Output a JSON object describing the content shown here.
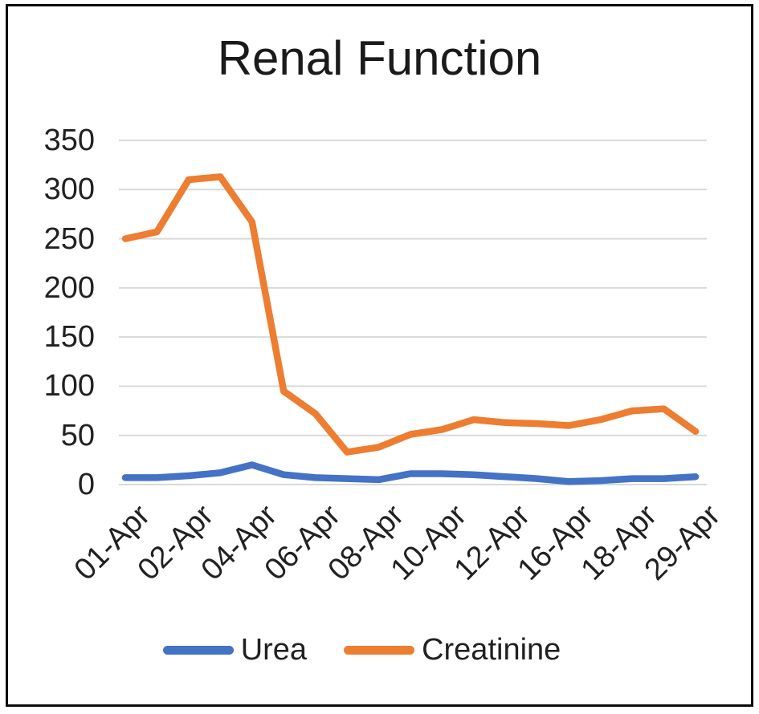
{
  "chart_data": {
    "type": "line",
    "title": "Renal Function",
    "categories": [
      "01-Apr",
      "",
      "02-Apr",
      "",
      "04-Apr",
      "",
      "06-Apr",
      "",
      "08-Apr",
      "",
      "10-Apr",
      "",
      "12-Apr",
      "",
      "16-Apr",
      "",
      "18-Apr",
      "",
      "29-Apr"
    ],
    "visible_x_labels": [
      "01-Apr",
      "02-Apr",
      "04-Apr",
      "06-Apr",
      "08-Apr",
      "10-Apr",
      "12-Apr",
      "16-Apr",
      "18-Apr",
      "29-Apr"
    ],
    "x_label_interval": 2,
    "series": [
      {
        "name": "Urea",
        "color": "#4472C4",
        "values": [
          7,
          7,
          9,
          12,
          20,
          10,
          7,
          6,
          5,
          11,
          11,
          10,
          8,
          6,
          3,
          4,
          6,
          6,
          8
        ]
      },
      {
        "name": "Creatinine",
        "color": "#ED7D31",
        "values": [
          250,
          257,
          310,
          313,
          267,
          95,
          72,
          33,
          38,
          51,
          56,
          66,
          63,
          62,
          60,
          66,
          75,
          77,
          54
        ]
      }
    ],
    "ylim": [
      0,
      350
    ],
    "yticks": [
      0,
      50,
      100,
      150,
      200,
      250,
      300,
      350
    ],
    "grid": "horizontal",
    "grid_color": "#D9D9D9",
    "legend_position": "bottom",
    "xlabel": "",
    "ylabel": ""
  },
  "style": {
    "frame_border_color": "#0b0b0b",
    "background_color": "#ffffff",
    "text_color": "#212121"
  }
}
